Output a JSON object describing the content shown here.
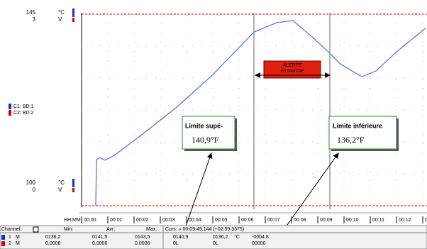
{
  "axes": {
    "top_value": "145",
    "top_value_2": "3",
    "bottom_value": "100",
    "bottom_value_2": "0",
    "unit_temp": "°C",
    "unit_volt": "V",
    "time_label": "HH:MM",
    "time_ticks": [
      "00:00",
      "00:01",
      "00:02",
      "00:03",
      "00:04",
      "00:05",
      "00:06",
      "00:07",
      "00:08",
      "00:09",
      "00:10",
      "00:11",
      "00:12",
      "00:13"
    ]
  },
  "legend": [
    "C1: BD:1",
    "C2: BD:2"
  ],
  "plot": {
    "xlim": [
      0,
      13.16
    ],
    "ylim": [
      100,
      145
    ],
    "x": [
      0.54,
      0.57,
      0.68,
      0.89,
      1.22,
      2.3,
      3.65,
      5.0,
      6.57,
      7.43,
      8.05,
      8.78,
      9.46,
      9.86,
      10.68,
      11.22,
      12.03,
      13.1
    ],
    "values": [
      100,
      110.8,
      111.3,
      110.7,
      111.7,
      116.7,
      123.3,
      130.8,
      140.8,
      143,
      143.5,
      139.7,
      135.8,
      133.3,
      130.3,
      131.7,
      136.3,
      141.7
    ]
  },
  "alert": {
    "line1": "ALERTE",
    "line2": "en marche"
  },
  "callouts": [
    {
      "title": "Limite supé-",
      "value": "140,9°F"
    },
    {
      "title": "Limite inférieure",
      "value": "136,2°F"
    }
  ],
  "table": {
    "header": [
      "Channel:",
      "Min:",
      "Avr:",
      "Max:",
      "Curs: » 00:09:49,144 (+02:59,3375)"
    ],
    "rows": [
      [
        "1",
        "M",
        "0136,2",
        "0141,5",
        "0143,5",
        "0140,9",
        "0136,2",
        "°C",
        "-0004,8"
      ],
      [
        "2",
        "M",
        "0,0006",
        "0,0006",
        "0,0006",
        "0L",
        "0L",
        "",
        "00000"
      ]
    ]
  }
}
